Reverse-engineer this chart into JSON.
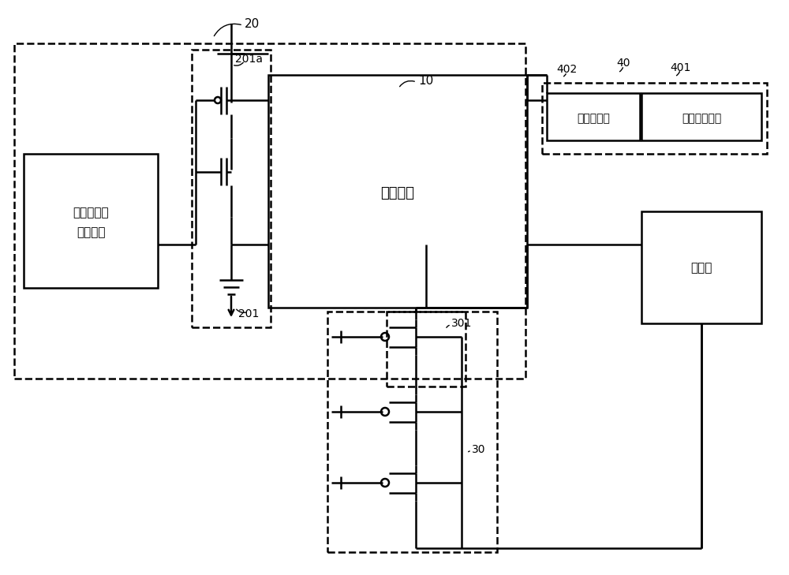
{
  "bg_color": "#ffffff",
  "line_color": "#000000",
  "fig_width": 10.0,
  "fig_height": 7.29,
  "combo_label1": "组合电路与",
  "combo_label2": "电平电路",
  "memory_label": "存储阵列",
  "voltage_label": "电压生成器",
  "bist_label": "内建自测电路",
  "read_label": "读电路"
}
